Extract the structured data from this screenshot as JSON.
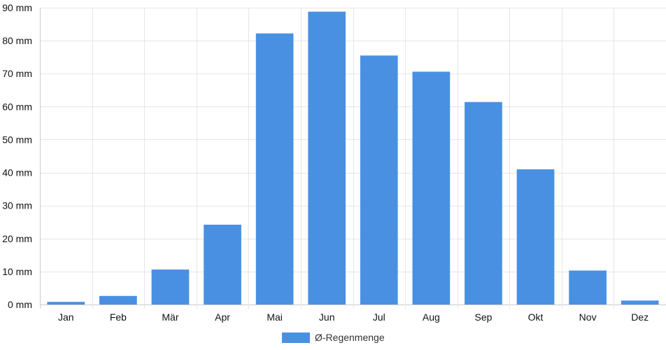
{
  "chart_data": {
    "type": "bar",
    "categories": [
      "Jan",
      "Feb",
      "Mär",
      "Apr",
      "Mai",
      "Jun",
      "Jul",
      "Aug",
      "Sep",
      "Okt",
      "Nov",
      "Dez"
    ],
    "series": [
      {
        "name": "Ø-Regenmenge",
        "values": [
          0.8,
          2.6,
          10.6,
          24.2,
          82.2,
          88.8,
          75.5,
          70.6,
          61.4,
          41.0,
          10.3,
          1.2
        ]
      }
    ],
    "y_unit": "mm",
    "y_ticks": [
      0,
      10,
      20,
      30,
      40,
      50,
      60,
      70,
      80,
      90
    ],
    "ylim": [
      0,
      90
    ],
    "grid": true,
    "legend": "bottom",
    "colors": {
      "bar": "#4a90e2",
      "grid": "#e6e6e6",
      "axis": "#cccccc"
    }
  }
}
